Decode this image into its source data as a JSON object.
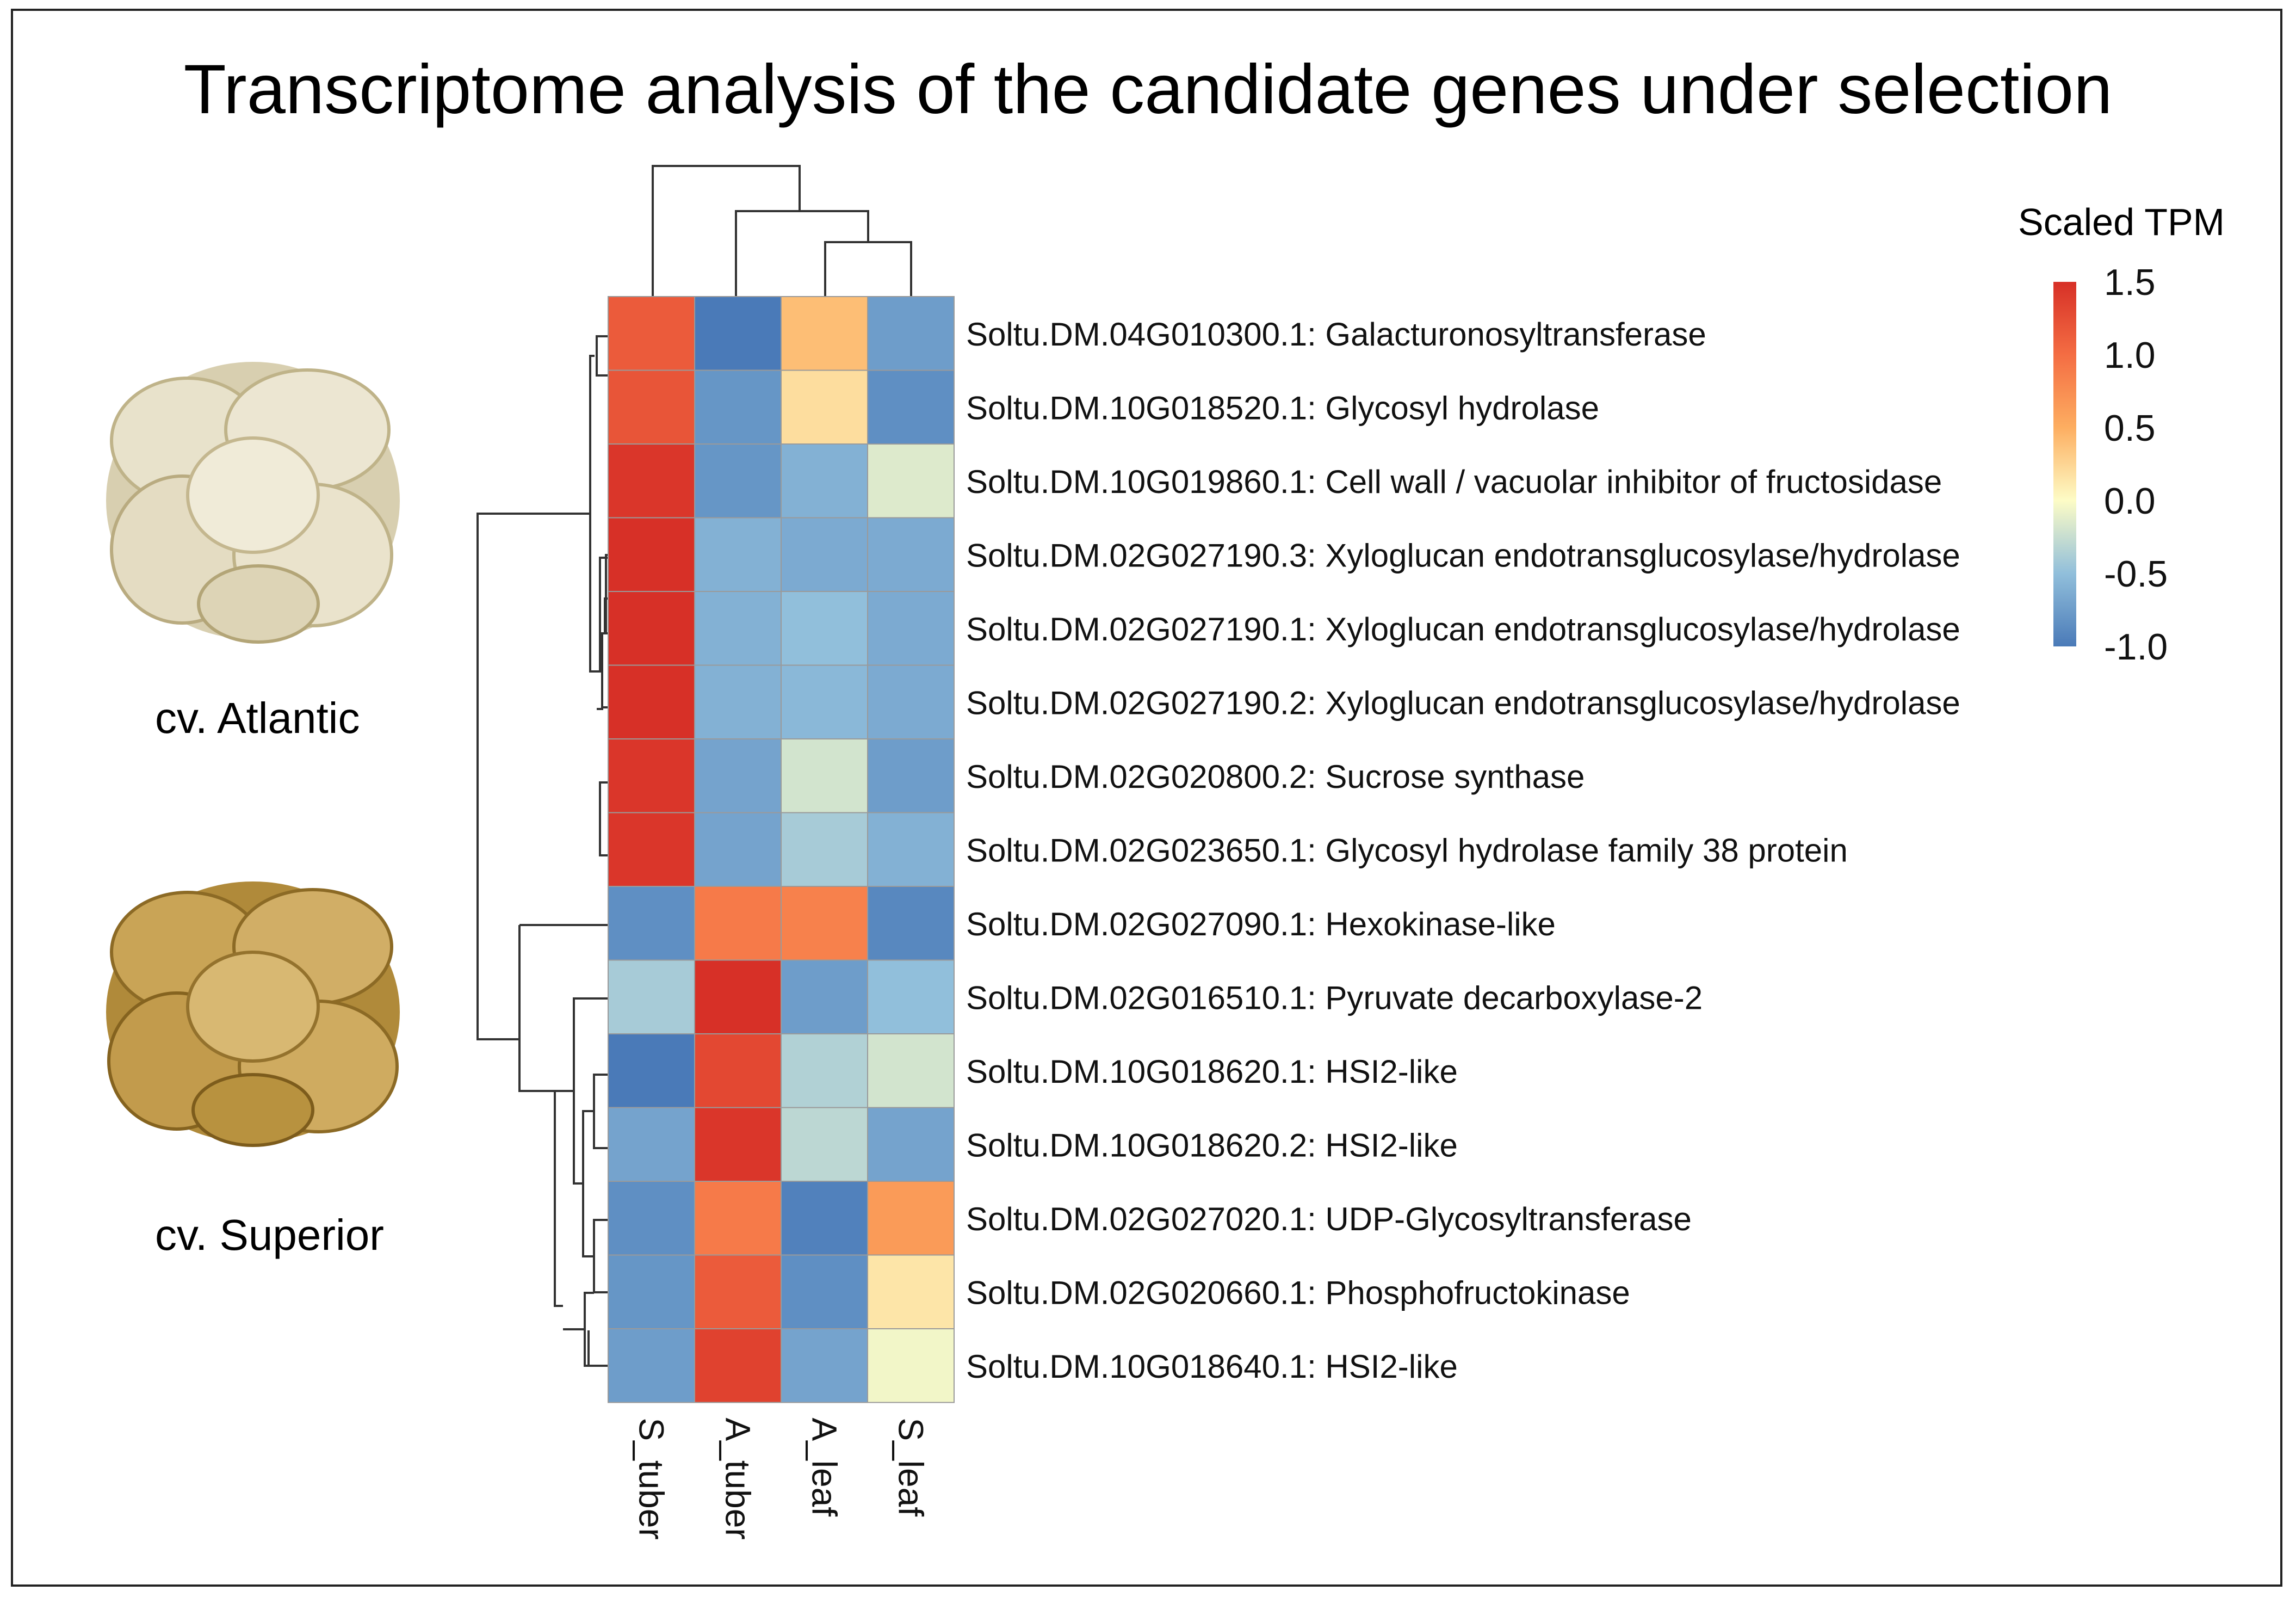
{
  "title": "Transcriptome analysis of the candidate genes under selection",
  "images": [
    {
      "caption": "cv. Atlantic",
      "icon": "potato-chips-image",
      "tone": "#e3dcc0"
    },
    {
      "caption": "cv. Superior",
      "icon": "potato-chips-image",
      "tone": "#b8913f"
    }
  ],
  "chart_data": {
    "type": "heatmap",
    "title": "Transcriptome analysis of the candidate genes under selection",
    "legend_title": "Scaled TPM",
    "legend_ticks": [
      "1.5",
      "1.0",
      "0.5",
      "0.0",
      "-0.5",
      "-1.0"
    ],
    "color_range": [
      -1.0,
      1.5
    ],
    "colors": {
      "low": "#4a7ab8",
      "mid": "#fdfcc6",
      "high": "#d73027"
    },
    "columns": [
      "S_tuber",
      "A_tuber",
      "A_leaf",
      "S_leaf"
    ],
    "rows": [
      "Soltu.DM.04G010300.1: Galacturonosyltransferase",
      "Soltu.DM.10G018520.1: Glycosyl hydrolase",
      "Soltu.DM.10G019860.1: Cell wall / vacuolar inhibitor of fructosidase",
      "Soltu.DM.02G027190.3: Xyloglucan endotransglucosylase/hydrolase",
      "Soltu.DM.02G027190.1: Xyloglucan endotransglucosylase/hydrolase",
      "Soltu.DM.02G027190.2: Xyloglucan endotransglucosylase/hydrolase",
      "Soltu.DM.02G020800.2: Sucrose synthase",
      "Soltu.DM.02G023650.1: Glycosyl hydrolase family 38 protein",
      "Soltu.DM.02G027090.1: Hexokinase-like",
      "Soltu.DM.02G016510.1: Pyruvate decarboxylase-2",
      "Soltu.DM.10G018620.1: HSI2-like",
      "Soltu.DM.10G018620.2: HSI2-like",
      "Soltu.DM.02G027020.1: UDP-Glycosyltransferase",
      "Soltu.DM.02G020660.1: Phosphofructokinase",
      "Soltu.DM.10G018640.1: HSI2-like"
    ],
    "values": [
      [
        1.15,
        -1.0,
        0.4,
        -0.75
      ],
      [
        1.2,
        -0.8,
        0.2,
        -0.85
      ],
      [
        1.45,
        -0.8,
        -0.6,
        -0.15
      ],
      [
        1.5,
        -0.6,
        -0.65,
        -0.65
      ],
      [
        1.5,
        -0.6,
        -0.5,
        -0.65
      ],
      [
        1.5,
        -0.6,
        -0.55,
        -0.65
      ],
      [
        1.45,
        -0.7,
        -0.2,
        -0.75
      ],
      [
        1.45,
        -0.7,
        -0.4,
        -0.6
      ],
      [
        -0.85,
        0.9,
        0.85,
        -0.9
      ],
      [
        -0.4,
        1.5,
        -0.75,
        -0.5
      ],
      [
        -1.0,
        1.3,
        -0.35,
        -0.2
      ],
      [
        -0.7,
        1.45,
        -0.3,
        -0.7
      ],
      [
        -0.85,
        0.9,
        -0.95,
        0.65
      ],
      [
        -0.8,
        1.15,
        -0.85,
        0.15
      ],
      [
        -0.75,
        1.35,
        -0.7,
        -0.05
      ]
    ]
  }
}
